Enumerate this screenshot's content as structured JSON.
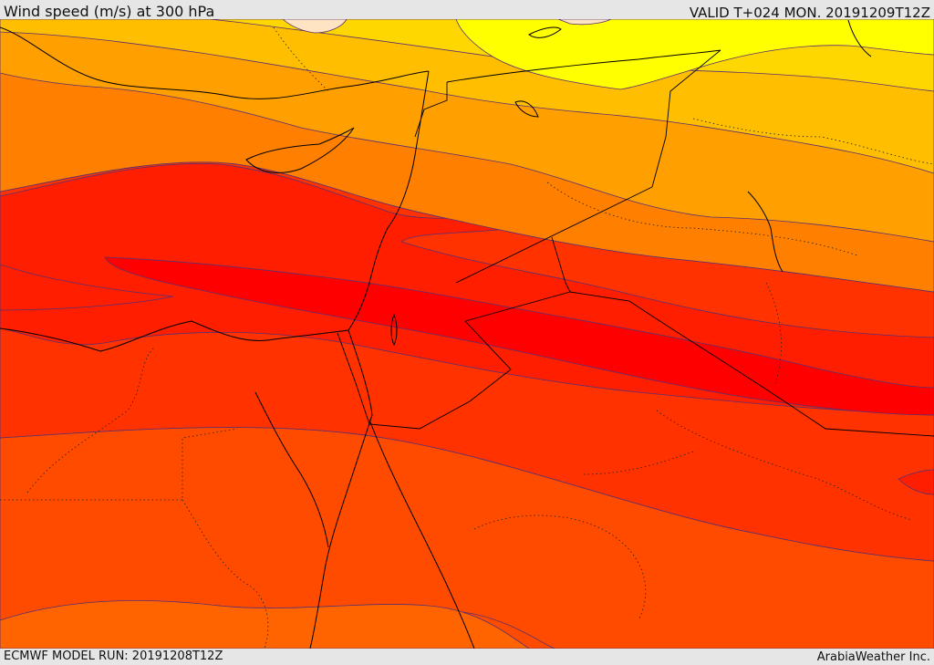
{
  "header": {
    "title": "Wind speed (m/s) at 300 hPa",
    "valid_time": "VALID T+024 MON. 20191209T12Z"
  },
  "footer": {
    "model_run": "ECMWF MODEL RUN: 20191208T12Z",
    "credit": "ArabiaWeather Inc."
  },
  "colors": {
    "band_1": "#ffff00",
    "band_2": "#ffd700",
    "band_3": "#ffbf00",
    "band_4": "#ff9f00",
    "band_5": "#ff8000",
    "band_6": "#ff6400",
    "band_7": "#ff4b00",
    "band_8": "#ff3200",
    "band_9": "#ff1e00",
    "band_10": "#ff0000",
    "peach": "#ffe4c4",
    "contour_line": "#5a3070",
    "coastline": "#000000"
  }
}
